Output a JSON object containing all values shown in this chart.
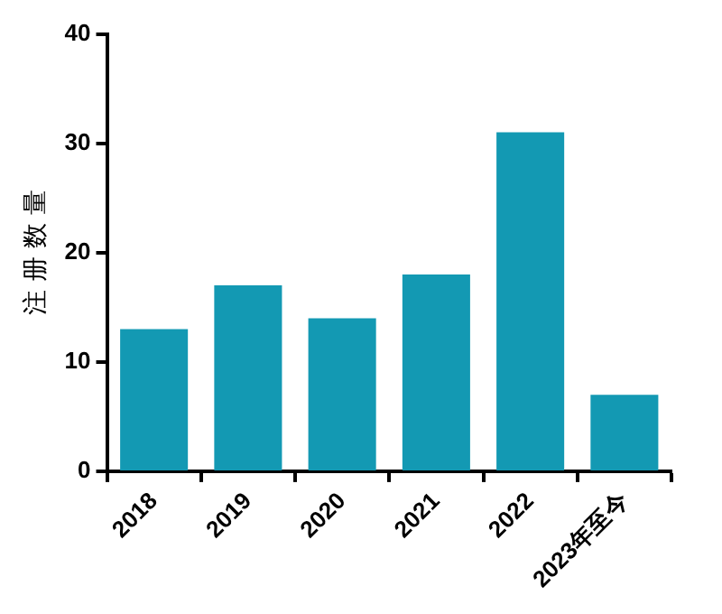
{
  "chart_data": {
    "type": "bar",
    "ylabel": "注 册 数 量",
    "categories": [
      "2018",
      "2019",
      "2020",
      "2021",
      "2022",
      "2023年至今"
    ],
    "values": [
      13,
      17,
      14,
      18,
      31,
      7
    ],
    "color": "#1399b3",
    "ylim": [
      0,
      40
    ],
    "yticks": [
      0,
      10,
      20,
      30,
      40
    ],
    "grid": false,
    "legend": false
  }
}
